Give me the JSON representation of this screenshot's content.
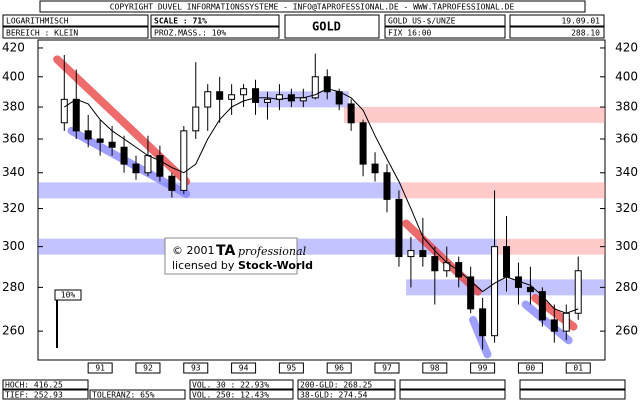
{
  "chart_data": {
    "type": "candlestick",
    "header": {
      "copyright": "COPYRIGHT  DUVEL INFORMATIONSSYSTEME - INFO@TAPROFESSIONAL.DE - WWW.TAPROFESSIONAL.DE",
      "scale_type": "LOGARITHMISCH",
      "range": "BEREICH : KLEIN",
      "scale": "SCALE : 71%",
      "percent": "PROZ.MASS.: 10%",
      "title": "GOLD",
      "instrument": "GOLD US-$/UNZE",
      "fix": "FIX 16:00",
      "date": "19.09.01",
      "last": "288.10"
    },
    "footer": [
      "HOCH: 416.25",
      "TIEF: 252.93",
      "TOLERANZ: 65%",
      "VOL. 30 : 22.93%",
      "VOL. 250: 12.43%",
      "200-GLD: 268.25",
      "38-GLD: 274.54"
    ],
    "watermark": [
      "© 2001",
      "TA",
      "professional",
      "licensed by",
      "Stock-World"
    ],
    "scale_label": "10%",
    "log_scale": true,
    "ylim": [
      247.6,
      425.7
    ],
    "yticks": [
      260,
      280,
      300,
      320,
      340,
      360,
      380,
      400,
      420
    ],
    "xlim": [
      1990.2,
      2002.06
    ],
    "xticks": [
      {
        "value": 1991.5,
        "label": "91"
      },
      {
        "value": 1992.5,
        "label": "92"
      },
      {
        "value": 1993.5,
        "label": "93"
      },
      {
        "value": 1994.5,
        "label": "94"
      },
      {
        "value": 1995.5,
        "label": "95"
      },
      {
        "value": 1996.5,
        "label": "96"
      },
      {
        "value": 1997.5,
        "label": "97"
      },
      {
        "value": 1998.5,
        "label": "98"
      },
      {
        "value": 1999.5,
        "label": "99"
      },
      {
        "value": 2000.5,
        "label": "00"
      },
      {
        "value": 2001.5,
        "label": "01"
      }
    ],
    "x": [
      1990.75,
      1991.0,
      1991.25,
      1991.5,
      1991.75,
      1992.0,
      1992.25,
      1992.5,
      1992.75,
      1993.0,
      1993.25,
      1993.5,
      1993.75,
      1994.0,
      1994.25,
      1994.5,
      1994.75,
      1995.0,
      1995.25,
      1995.5,
      1995.75,
      1996.0,
      1996.25,
      1996.5,
      1996.75,
      1997.0,
      1997.25,
      1997.5,
      1997.75,
      1998.0,
      1998.25,
      1998.5,
      1998.75,
      1999.0,
      1999.25,
      1999.5,
      1999.75,
      2000.0,
      2000.25,
      2000.5,
      2000.75,
      2001.0,
      2001.25,
      2001.5
    ],
    "open": [
      370,
      385,
      365,
      360,
      358,
      355,
      345,
      340,
      350,
      338,
      330,
      365,
      380,
      390,
      385,
      388,
      392,
      383,
      385,
      388,
      384,
      386,
      400,
      390,
      382,
      370,
      345,
      340,
      325,
      295,
      298,
      295,
      288,
      292,
      285,
      270,
      258,
      300,
      285,
      280,
      278,
      265,
      260,
      268
    ],
    "high": [
      415,
      405,
      375,
      372,
      368,
      362,
      350,
      362,
      356,
      340,
      368,
      410,
      395,
      400,
      395,
      395,
      398,
      390,
      395,
      392,
      392,
      416,
      405,
      392,
      385,
      372,
      352,
      345,
      330,
      305,
      315,
      300,
      300,
      295,
      290,
      275,
      330,
      316,
      292,
      290,
      280,
      272,
      272,
      295
    ],
    "low": [
      365,
      360,
      355,
      350,
      350,
      340,
      336,
      338,
      335,
      326,
      328,
      360,
      365,
      370,
      375,
      380,
      375,
      372,
      378,
      380,
      380,
      385,
      385,
      378,
      365,
      338,
      335,
      318,
      290,
      280,
      290,
      272,
      285,
      280,
      268,
      252,
      255,
      278,
      272,
      272,
      262,
      255,
      256,
      265
    ],
    "close": [
      385,
      365,
      360,
      358,
      355,
      345,
      340,
      350,
      338,
      330,
      365,
      380,
      390,
      385,
      388,
      392,
      383,
      385,
      388,
      384,
      386,
      400,
      390,
      382,
      370,
      345,
      340,
      325,
      295,
      298,
      295,
      288,
      292,
      285,
      270,
      258,
      300,
      285,
      280,
      278,
      265,
      260,
      268,
      288
    ],
    "moving_average": [
      380,
      385,
      382,
      372,
      365,
      360,
      355,
      350,
      347,
      343,
      340,
      345,
      360,
      372,
      380,
      384,
      386,
      386,
      385,
      386,
      386,
      388,
      392,
      390,
      386,
      378,
      362,
      348,
      335,
      320,
      305,
      298,
      292,
      288,
      283,
      278,
      282,
      285,
      283,
      281,
      276,
      270,
      268,
      270
    ],
    "bands": [
      {
        "value": 385,
        "x0": 1994.8,
        "x1": 1996.7,
        "color": "#7b7bff"
      },
      {
        "value": 375,
        "x0": 1996.6,
        "x1": 2002.06,
        "color": "#ff8a8a"
      },
      {
        "value": 330,
        "x0": 1990.2,
        "x1": 1997.8,
        "color": "#7b7bff"
      },
      {
        "value": 330,
        "x0": 1997.8,
        "x1": 2002.06,
        "color": "#ff8a8a"
      },
      {
        "value": 300,
        "x0": 1990.2,
        "x1": 1999.8,
        "color": "#7b7bff"
      },
      {
        "value": 300,
        "x0": 1999.8,
        "x1": 2002.06,
        "color": "#ff8a8a"
      },
      {
        "value": 280,
        "x0": 1997.9,
        "x1": 2002.06,
        "color": "#7b7bff"
      }
    ],
    "trendlines": [
      {
        "x": [
          1990.6,
          1993.3
        ],
        "y": [
          412,
          335
        ],
        "color": "#e83a3a"
      },
      {
        "x": [
          1990.9,
          1993.3
        ],
        "y": [
          365,
          328
        ],
        "color": "#8080ff"
      },
      {
        "x": [
          1997.9,
          1999.4
        ],
        "y": [
          312,
          278
        ],
        "color": "#e83a3a"
      },
      {
        "x": [
          1999.3,
          1999.6
        ],
        "y": [
          265,
          250
        ],
        "color": "#8080ff"
      },
      {
        "x": [
          2000.6,
          2001.4
        ],
        "y": [
          275,
          262
        ],
        "color": "#e83a3a"
      },
      {
        "x": [
          2000.4,
          2001.3
        ],
        "y": [
          272,
          256
        ],
        "color": "#8080ff"
      }
    ]
  }
}
